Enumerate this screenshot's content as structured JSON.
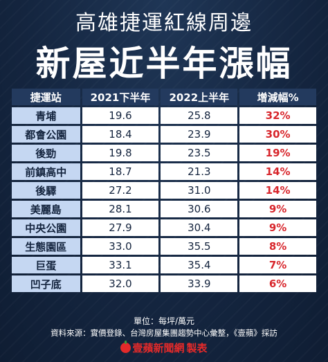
{
  "header": {
    "subtitle": "高雄捷運紅線周邊",
    "title": "新屋近半年漲幅"
  },
  "footer": {
    "unit_label": "單位：每坪/萬元",
    "source_label": "資料來源：",
    "source_text": "實價登錄、台灣房屋集團趨勢中心彙整，《壹蘋》採訪",
    "logo_text": "壹蘋新聞網",
    "logo_suffix": "製表",
    "logo_icon": "apple-icon",
    "accent_color": "#d8262c"
  },
  "chart_data": {
    "type": "table",
    "columns": [
      "捷運站",
      "2021下半年",
      "2022上半年",
      "增減幅%"
    ],
    "rows": [
      {
        "station": "青埔",
        "h2_2021": "19.6",
        "h1_2022": "25.8",
        "change": "32%"
      },
      {
        "station": "都會公園",
        "h2_2021": "18.4",
        "h1_2022": "23.9",
        "change": "30%"
      },
      {
        "station": "後勁",
        "h2_2021": "19.8",
        "h1_2022": "23.5",
        "change": "19%"
      },
      {
        "station": "前鎮高中",
        "h2_2021": "18.7",
        "h1_2022": "21.3",
        "change": "14%"
      },
      {
        "station": "後驛",
        "h2_2021": "27.2",
        "h1_2022": "31.0",
        "change": "14%"
      },
      {
        "station": "美麗島",
        "h2_2021": "28.1",
        "h1_2022": "30.6",
        "change": "9%"
      },
      {
        "station": "中央公園",
        "h2_2021": "27.9",
        "h1_2022": "30.4",
        "change": "9%"
      },
      {
        "station": "生態園區",
        "h2_2021": "33.0",
        "h1_2022": "35.5",
        "change": "8%"
      },
      {
        "station": "巨蛋",
        "h2_2021": "33.1",
        "h1_2022": "35.4",
        "change": "7%"
      },
      {
        "station": "凹子底",
        "h2_2021": "32.0",
        "h1_2022": "33.9",
        "change": "6%"
      }
    ]
  }
}
